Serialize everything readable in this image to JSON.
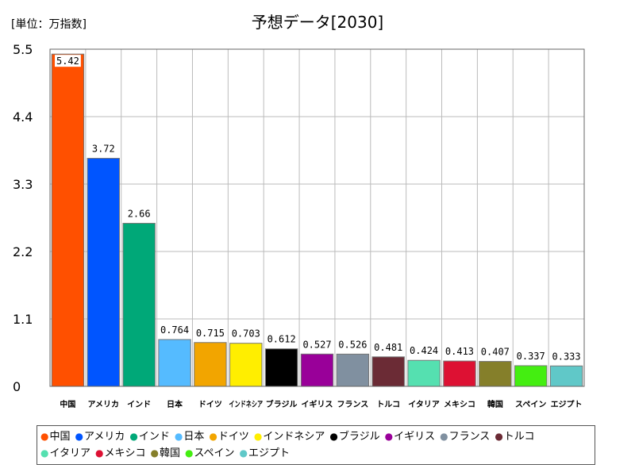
{
  "unit_label": "[単位：万指数]",
  "chart_data": {
    "type": "bar",
    "title": "予想データ[2030]",
    "categories": [
      "中国",
      "アメリカ",
      "インド",
      "日本",
      "ドイツ",
      "インドネシア",
      "ブラジル",
      "イギリス",
      "フランス",
      "トルコ",
      "イタリア",
      "メキシコ",
      "韓国",
      "スペイン",
      "エジプト"
    ],
    "values": [
      5.42,
      3.72,
      2.66,
      0.764,
      0.715,
      0.703,
      0.612,
      0.527,
      0.526,
      0.481,
      0.424,
      0.413,
      0.407,
      0.337,
      0.333
    ],
    "value_labels": [
      "5.42",
      "3.72",
      "2.66",
      "0.764",
      "0.715",
      "0.703",
      "0.612",
      "0.527",
      "0.526",
      "0.481",
      "0.424",
      "0.413",
      "0.407",
      "0.337",
      "0.333"
    ],
    "colors": [
      "#ff5000",
      "#0055ff",
      "#00a878",
      "#55bbff",
      "#f2a500",
      "#ffee00",
      "#000000",
      "#990099",
      "#8090a0",
      "#6b2b35",
      "#55e0b0",
      "#dd1133",
      "#857f2a",
      "#44ee11",
      "#60c8c8"
    ],
    "yticks": [
      "0",
      "1.1",
      "2.2",
      "3.3",
      "4.4",
      "5.5"
    ],
    "ylim": [
      0,
      5.5
    ],
    "grid": true,
    "legend_position": "bottom"
  }
}
